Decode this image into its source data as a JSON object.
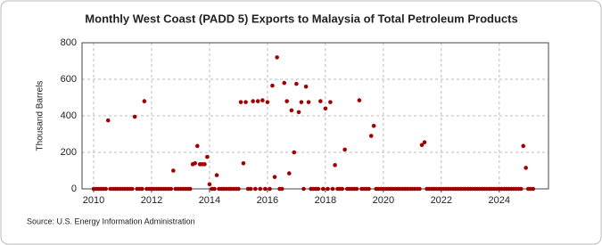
{
  "chart_data": {
    "type": "scatter",
    "title": "Monthly West Coast (PADD 5) Exports to Malaysia of Total Petroleum Products",
    "y_label": "Thousand Barrels",
    "source": "Source: U.S. Energy Information Administration",
    "color": "#a00000",
    "grid": true,
    "xlim": [
      2009.6,
      2025.7
    ],
    "ylim": [
      0,
      800
    ],
    "xticks": [
      2010,
      2012,
      2014,
      2016,
      2018,
      2020,
      2022,
      2024
    ],
    "yticks": [
      0,
      200,
      400,
      600,
      800
    ],
    "x": [
      2010.0,
      2010.08,
      2010.17,
      2010.25,
      2010.33,
      2010.42,
      2010.5,
      2010.58,
      2010.67,
      2010.75,
      2010.83,
      2010.92,
      2011.0,
      2011.08,
      2011.17,
      2011.25,
      2011.33,
      2011.42,
      2011.5,
      2011.58,
      2011.67,
      2011.75,
      2011.83,
      2011.92,
      2012.0,
      2012.08,
      2012.17,
      2012.25,
      2012.33,
      2012.42,
      2012.5,
      2012.58,
      2012.67,
      2012.75,
      2012.83,
      2012.92,
      2013.0,
      2013.08,
      2013.17,
      2013.25,
      2013.33,
      2013.42,
      2013.5,
      2013.58,
      2013.67,
      2013.75,
      2013.83,
      2013.92,
      2014.0,
      2014.08,
      2014.17,
      2014.25,
      2014.33,
      2014.42,
      2014.5,
      2014.58,
      2014.67,
      2014.75,
      2014.83,
      2014.92,
      2015.0,
      2015.08,
      2015.17,
      2015.25,
      2015.33,
      2015.42,
      2015.5,
      2015.58,
      2015.67,
      2015.75,
      2015.83,
      2015.92,
      2016.0,
      2016.08,
      2016.17,
      2016.25,
      2016.33,
      2016.42,
      2016.5,
      2016.58,
      2016.67,
      2016.75,
      2016.83,
      2016.92,
      2017.0,
      2017.08,
      2017.17,
      2017.25,
      2017.33,
      2017.42,
      2017.5,
      2017.58,
      2017.67,
      2017.75,
      2017.83,
      2017.92,
      2018.0,
      2018.08,
      2018.17,
      2018.25,
      2018.33,
      2018.42,
      2018.5,
      2018.58,
      2018.67,
      2018.75,
      2018.83,
      2018.92,
      2019.0,
      2019.08,
      2019.17,
      2019.25,
      2019.33,
      2019.42,
      2019.5,
      2019.58,
      2019.67,
      2019.75,
      2019.83,
      2019.92,
      2020.0,
      2020.08,
      2020.17,
      2020.25,
      2020.33,
      2020.42,
      2020.5,
      2020.58,
      2020.67,
      2020.75,
      2020.83,
      2020.92,
      2021.0,
      2021.08,
      2021.17,
      2021.25,
      2021.33,
      2021.42,
      2021.5,
      2021.58,
      2021.67,
      2021.75,
      2021.83,
      2021.92,
      2022.0,
      2022.08,
      2022.17,
      2022.25,
      2022.33,
      2022.42,
      2022.5,
      2022.58,
      2022.67,
      2022.75,
      2022.83,
      2022.92,
      2023.0,
      2023.08,
      2023.17,
      2023.25,
      2023.33,
      2023.42,
      2023.5,
      2023.58,
      2023.67,
      2023.75,
      2023.83,
      2023.92,
      2024.0,
      2024.08,
      2024.17,
      2024.25,
      2024.33,
      2024.42,
      2024.5,
      2024.58,
      2024.67,
      2024.75,
      2024.83,
      2024.92,
      2025.0,
      2025.08,
      2025.17
    ],
    "values": [
      0,
      0,
      0,
      0,
      0,
      0,
      375,
      0,
      0,
      0,
      0,
      0,
      0,
      0,
      0,
      0,
      0,
      395,
      0,
      0,
      0,
      480,
      0,
      0,
      0,
      0,
      0,
      0,
      0,
      0,
      0,
      0,
      0,
      100,
      0,
      0,
      0,
      0,
      0,
      0,
      0,
      135,
      140,
      235,
      135,
      135,
      135,
      175,
      25,
      0,
      0,
      75,
      0,
      0,
      0,
      0,
      0,
      0,
      0,
      0,
      0,
      475,
      140,
      475,
      0,
      0,
      480,
      0,
      480,
      0,
      485,
      0,
      475,
      0,
      565,
      65,
      720,
      0,
      0,
      580,
      480,
      85,
      430,
      200,
      575,
      420,
      475,
      0,
      560,
      475,
      0,
      0,
      0,
      0,
      480,
      0,
      440,
      0,
      475,
      0,
      130,
      0,
      0,
      0,
      215,
      0,
      0,
      0,
      0,
      0,
      485,
      0,
      0,
      0,
      0,
      290,
      345,
      0,
      0,
      0,
      0,
      0,
      0,
      0,
      0,
      0,
      0,
      0,
      0,
      0,
      0,
      0,
      0,
      0,
      0,
      0,
      240,
      255,
      0,
      0,
      0,
      0,
      0,
      0,
      0,
      0,
      0,
      0,
      0,
      0,
      0,
      0,
      0,
      0,
      0,
      0,
      0,
      0,
      0,
      0,
      0,
      0,
      0,
      0,
      0,
      0,
      0,
      0,
      0,
      0,
      0,
      0,
      0,
      0,
      0,
      0,
      0,
      0,
      235,
      115,
      0,
      0,
      0
    ]
  }
}
